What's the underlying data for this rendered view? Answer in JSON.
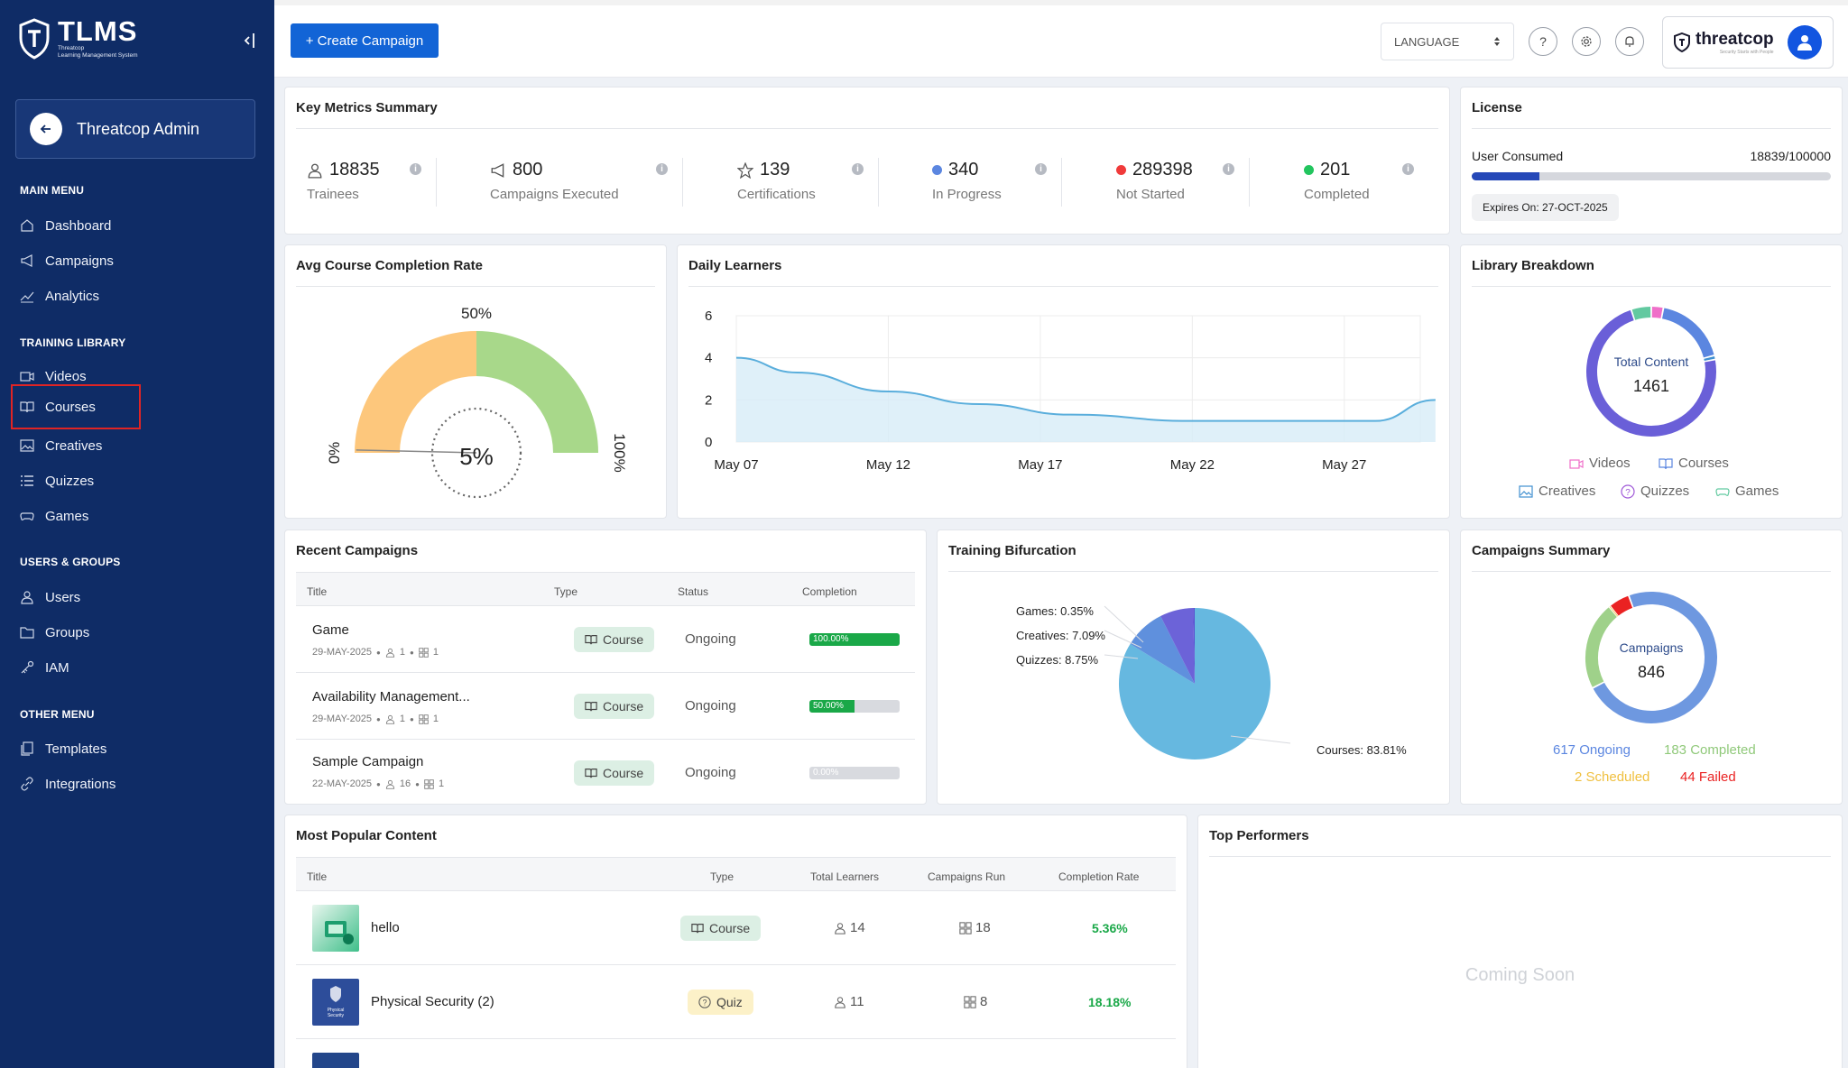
{
  "app": {
    "name": "TLMS",
    "subtitle_line1": "Threatcop",
    "subtitle_line2": "Learning Management System",
    "admin": "Threatcop Admin"
  },
  "menu": {
    "main_heading": "MAIN MENU",
    "main": [
      "Dashboard",
      "Campaigns",
      "Analytics"
    ],
    "library_heading": "TRAINING LIBRARY",
    "library": [
      "Videos",
      "Courses",
      "Creatives",
      "Quizzes",
      "Games"
    ],
    "users_heading": "USERS & GROUPS",
    "users": [
      "Users",
      "Groups",
      "IAM"
    ],
    "other_heading": "OTHER MENU",
    "other": [
      "Templates",
      "Integrations"
    ]
  },
  "topbar": {
    "create": "+ Create Campaign",
    "language": "LANGUAGE",
    "help": "?",
    "brand": "threatcop",
    "brand_tag": "Security Starts with People"
  },
  "metrics": {
    "title": "Key Metrics Summary",
    "items": [
      {
        "value": "18835",
        "label": "Trainees"
      },
      {
        "value": "800",
        "label": "Campaigns Executed"
      },
      {
        "value": "139",
        "label": "Certifications"
      },
      {
        "value": "340",
        "label": "In Progress",
        "color": "#5b86e0"
      },
      {
        "value": "289398",
        "label": "Not Started",
        "color": "#f03a3a"
      },
      {
        "value": "201",
        "label": "Completed",
        "color": "#22c55e"
      }
    ]
  },
  "license": {
    "title": "License",
    "label": "User Consumed",
    "value": "18839/100000",
    "consumed": 0.18839,
    "expires": "Expires On: 27-OCT-2025"
  },
  "completion": {
    "title": "Avg Course Completion Rate",
    "value": "5%",
    "mid": "50%",
    "min": "0%",
    "max": "100%",
    "rate": 0.05
  },
  "daily": {
    "title": "Daily Learners"
  },
  "library": {
    "title": "Library Breakdown",
    "center_label": "Total Content",
    "center_value": "1461",
    "legend": [
      "Videos",
      "Courses",
      "Creatives",
      "Quizzes",
      "Games"
    ]
  },
  "recent": {
    "title": "Recent Campaigns",
    "headers": [
      "Title",
      "Type",
      "Status",
      "Completion"
    ],
    "rows": [
      {
        "title": "Game",
        "date": "29-MAY-2025",
        "users": "1",
        "groups": "1",
        "type": "Course",
        "status": "Ongoing",
        "completion": "100.00%",
        "pct": 100
      },
      {
        "title": "Availability Management...",
        "date": "29-MAY-2025",
        "users": "1",
        "groups": "1",
        "type": "Course",
        "status": "Ongoing",
        "completion": "50.00%",
        "pct": 50
      },
      {
        "title": "Sample Campaign",
        "date": "22-MAY-2025",
        "users": "16",
        "groups": "1",
        "type": "Course",
        "status": "Ongoing",
        "completion": "0.00%",
        "pct": 0
      }
    ]
  },
  "bifurcation": {
    "title": "Training Bifurcation",
    "labels": [
      "Games: 0.35%",
      "Creatives: 7.09%",
      "Quizzes: 8.75%",
      "Courses: 83.81%"
    ]
  },
  "campaigns_summary": {
    "title": "Campaigns Summary",
    "center_label": "Campaigns",
    "center_value": "846",
    "ongoing": "617 Ongoing",
    "completed": "183 Completed",
    "scheduled": "2 Scheduled",
    "failed": "44 Failed"
  },
  "popular": {
    "title": "Most Popular Content",
    "headers": [
      "Title",
      "Type",
      "Total Learners",
      "Campaigns Run",
      "Completion Rate"
    ],
    "rows": [
      {
        "title": "hello",
        "type": "Course",
        "learners": "14",
        "campaigns": "18",
        "rate": "5.36%"
      },
      {
        "title": "Physical Security (2)",
        "type": "Quiz",
        "learners": "11",
        "campaigns": "8",
        "rate": "18.18%"
      }
    ],
    "thumb_text": [
      "Physical",
      "Security"
    ]
  },
  "performers": {
    "title": "Top Performers",
    "coming": "Coming Soon"
  },
  "chart_data": [
    {
      "type": "line",
      "title": "Daily Learners",
      "x": [
        "May 07",
        "May 12",
        "May 17",
        "May 22",
        "May 27"
      ],
      "yticks": [
        0,
        2,
        4,
        6
      ],
      "ylim": [
        0,
        6
      ],
      "points": [
        [
          7,
          4
        ],
        [
          9,
          3.3
        ],
        [
          12,
          2.4
        ],
        [
          15,
          1.8
        ],
        [
          18,
          1.3
        ],
        [
          22,
          1
        ],
        [
          25,
          1
        ],
        [
          28,
          1
        ],
        [
          30,
          2
        ]
      ],
      "grid": true
    },
    {
      "type": "pie",
      "title": "Training Bifurcation",
      "labels": [
        "Courses",
        "Quizzes",
        "Creatives",
        "Games"
      ],
      "values": [
        83.81,
        8.75,
        7.09,
        0.35
      ],
      "colors": [
        "#66b8e0",
        "#5f90dd",
        "#6c63d8",
        "#5a4fcf"
      ]
    },
    {
      "type": "pie",
      "title": "Library Breakdown",
      "labels": [
        "Videos",
        "Courses",
        "Creatives",
        "Quizzes",
        "Games"
      ],
      "values": [
        3,
        18,
        1,
        73,
        5
      ],
      "colors": [
        "#ef6fc9",
        "#5b86e0",
        "#3f8fd0",
        "#6a5fd8",
        "#62c9a0"
      ]
    },
    {
      "type": "pie",
      "title": "Campaigns Summary",
      "labels": [
        "Ongoing",
        "Completed",
        "Scheduled",
        "Failed"
      ],
      "values": [
        617,
        183,
        2,
        44
      ],
      "colors": [
        "#6e98e0",
        "#9fd18a",
        "#f0c040",
        "#ea2222"
      ]
    }
  ]
}
